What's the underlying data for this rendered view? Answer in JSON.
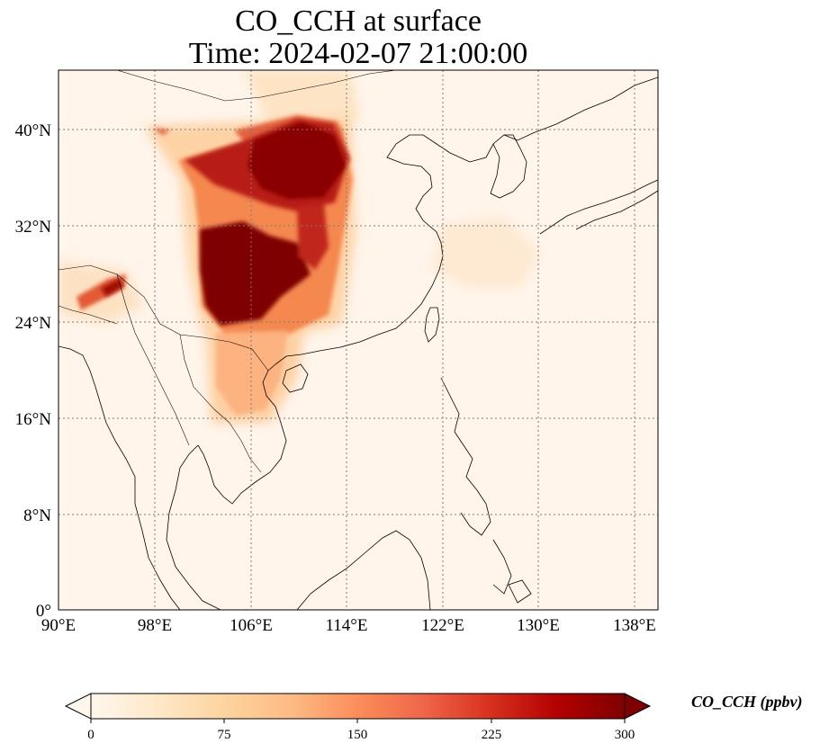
{
  "title": {
    "line1": "CO_CCH at surface",
    "line2": "Time: 2024-02-07 21:00:00"
  },
  "map": {
    "lon_ticks": [
      "90°E",
      "98°E",
      "106°E",
      "114°E",
      "122°E",
      "130°E",
      "138°E"
    ],
    "lat_ticks": [
      "0°",
      "8°N",
      "16°N",
      "24°N",
      "32°N",
      "40°N"
    ],
    "lon_range": [
      90,
      140
    ],
    "lat_range": [
      0,
      44.5
    ],
    "gridlines": true,
    "colormap": "OrRd",
    "background_color": "#fff5eb",
    "coast_color": "#000000"
  },
  "colorbar": {
    "label": "CO_CCH (ppbv)",
    "ticks": [
      "0",
      "75",
      "150",
      "225",
      "300"
    ],
    "range": [
      0,
      300
    ],
    "extend": "both",
    "colors": [
      "#fff7ec",
      "#fee8c8",
      "#fdd49e",
      "#fdbb84",
      "#fc8d59",
      "#ef6548",
      "#d7301f",
      "#b30000",
      "#7f0000"
    ]
  }
}
